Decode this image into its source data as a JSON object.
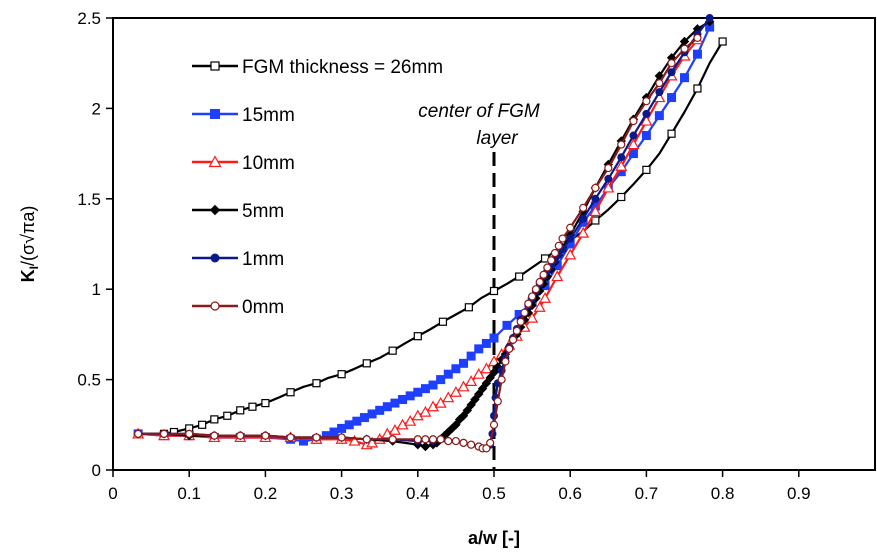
{
  "chart_data": {
    "type": "line",
    "xlabel": "a/w [-]",
    "ylabel_main": "K",
    "ylabel_sub": "I",
    "ylabel_rest": "/(σ√πa)",
    "xlim": [
      0,
      1
    ],
    "ylim": [
      0,
      2.5
    ],
    "x_ticks": [
      0,
      0.1,
      0.2,
      0.3,
      0.4,
      0.5,
      0.6,
      0.7,
      0.8,
      0.9
    ],
    "x_tick_labels": [
      "0",
      "0.1",
      "0.2",
      "0.3",
      "0.4",
      "0.5",
      "0.6",
      "0.7",
      "0.8",
      "0.9"
    ],
    "y_ticks": [
      0,
      0.5,
      1,
      1.5,
      2,
      2.5
    ],
    "y_tick_labels": [
      "0",
      "0.5",
      "1",
      "1.5",
      "2",
      "2.5"
    ],
    "grid": false,
    "legend_position": "top-left",
    "annotation": {
      "line1": "center of FGM",
      "line2": "layer",
      "x": 0.5
    },
    "series": [
      {
        "name": "FGM thickness = 26mm",
        "color": "#000000",
        "marker": "square-open",
        "x": [
          0.033,
          0.067,
          0.08,
          0.1,
          0.117,
          0.133,
          0.15,
          0.167,
          0.183,
          0.2,
          0.217,
          0.233,
          0.25,
          0.267,
          0.283,
          0.3,
          0.317,
          0.333,
          0.35,
          0.367,
          0.383,
          0.4,
          0.417,
          0.433,
          0.45,
          0.467,
          0.483,
          0.5,
          0.517,
          0.533,
          0.55,
          0.567,
          0.583,
          0.6,
          0.617,
          0.633,
          0.65,
          0.667,
          0.683,
          0.7,
          0.717,
          0.733,
          0.75,
          0.767,
          0.783,
          0.8
        ],
        "y": [
          0.2,
          0.2,
          0.21,
          0.23,
          0.25,
          0.28,
          0.3,
          0.33,
          0.35,
          0.37,
          0.4,
          0.43,
          0.46,
          0.48,
          0.51,
          0.53,
          0.56,
          0.59,
          0.62,
          0.66,
          0.7,
          0.74,
          0.78,
          0.82,
          0.86,
          0.9,
          0.95,
          0.99,
          1.03,
          1.07,
          1.12,
          1.17,
          1.22,
          1.27,
          1.32,
          1.38,
          1.44,
          1.51,
          1.58,
          1.66,
          1.75,
          1.86,
          1.98,
          2.11,
          2.25,
          2.37
        ],
        "marked_x": [
          0.033,
          0.067,
          0.08,
          0.1,
          0.117,
          0.133,
          0.15,
          0.167,
          0.183,
          0.2,
          0.233,
          0.267,
          0.3,
          0.333,
          0.367,
          0.4,
          0.433,
          0.467,
          0.5,
          0.533,
          0.567,
          0.6,
          0.633,
          0.667,
          0.7,
          0.733,
          0.767,
          0.8
        ]
      },
      {
        "name": "15mm",
        "color": "#1f3fff",
        "marker": "square-filled",
        "x": [
          0.033,
          0.067,
          0.1,
          0.133,
          0.167,
          0.2,
          0.233,
          0.25,
          0.267,
          0.28,
          0.29,
          0.3,
          0.31,
          0.32,
          0.33,
          0.34,
          0.35,
          0.36,
          0.37,
          0.38,
          0.39,
          0.4,
          0.41,
          0.42,
          0.43,
          0.44,
          0.45,
          0.46,
          0.47,
          0.48,
          0.49,
          0.5,
          0.517,
          0.533,
          0.55,
          0.567,
          0.583,
          0.6,
          0.617,
          0.633,
          0.65,
          0.667,
          0.683,
          0.7,
          0.717,
          0.733,
          0.75,
          0.767,
          0.783
        ],
        "y": [
          0.2,
          0.19,
          0.19,
          0.18,
          0.18,
          0.18,
          0.17,
          0.16,
          0.17,
          0.19,
          0.21,
          0.23,
          0.25,
          0.27,
          0.29,
          0.31,
          0.33,
          0.35,
          0.37,
          0.39,
          0.41,
          0.43,
          0.45,
          0.47,
          0.5,
          0.53,
          0.56,
          0.59,
          0.63,
          0.67,
          0.7,
          0.73,
          0.8,
          0.86,
          0.93,
          1.02,
          1.13,
          1.25,
          1.37,
          1.46,
          1.56,
          1.65,
          1.75,
          1.85,
          1.96,
          2.06,
          2.17,
          2.3,
          2.45
        ]
      },
      {
        "name": "10mm",
        "color": "#ff1a1a",
        "marker": "triangle-open",
        "x": [
          0.033,
          0.067,
          0.1,
          0.133,
          0.167,
          0.2,
          0.233,
          0.267,
          0.3,
          0.317,
          0.333,
          0.34,
          0.35,
          0.36,
          0.37,
          0.38,
          0.39,
          0.4,
          0.41,
          0.42,
          0.43,
          0.44,
          0.45,
          0.46,
          0.47,
          0.48,
          0.49,
          0.5,
          0.51,
          0.52,
          0.53,
          0.54,
          0.55,
          0.56,
          0.567,
          0.583,
          0.6,
          0.617,
          0.633,
          0.65,
          0.667,
          0.683,
          0.7,
          0.717,
          0.733,
          0.75,
          0.767
        ],
        "y": [
          0.2,
          0.19,
          0.19,
          0.18,
          0.18,
          0.18,
          0.18,
          0.17,
          0.17,
          0.16,
          0.14,
          0.15,
          0.17,
          0.2,
          0.22,
          0.25,
          0.27,
          0.3,
          0.32,
          0.35,
          0.37,
          0.4,
          0.43,
          0.46,
          0.49,
          0.53,
          0.56,
          0.6,
          0.64,
          0.69,
          0.74,
          0.79,
          0.84,
          0.9,
          0.95,
          1.07,
          1.19,
          1.31,
          1.43,
          1.56,
          1.68,
          1.8,
          1.93,
          2.06,
          2.18,
          2.29,
          2.38
        ]
      },
      {
        "name": "5mm",
        "color": "#000000",
        "marker": "diamond-filled",
        "x": [
          0.033,
          0.067,
          0.1,
          0.133,
          0.167,
          0.2,
          0.233,
          0.267,
          0.3,
          0.333,
          0.367,
          0.4,
          0.41,
          0.42,
          0.425,
          0.43,
          0.435,
          0.44,
          0.445,
          0.45,
          0.455,
          0.46,
          0.465,
          0.47,
          0.475,
          0.48,
          0.485,
          0.49,
          0.495,
          0.5,
          0.505,
          0.51,
          0.515,
          0.52,
          0.525,
          0.53,
          0.535,
          0.54,
          0.545,
          0.55,
          0.555,
          0.56,
          0.565,
          0.57,
          0.575,
          0.58,
          0.585,
          0.59,
          0.6,
          0.617,
          0.633,
          0.65,
          0.667,
          0.683,
          0.7,
          0.717,
          0.733,
          0.75,
          0.767,
          0.783
        ],
        "y": [
          0.2,
          0.2,
          0.19,
          0.19,
          0.19,
          0.19,
          0.18,
          0.18,
          0.18,
          0.17,
          0.16,
          0.14,
          0.13,
          0.14,
          0.15,
          0.17,
          0.19,
          0.21,
          0.23,
          0.25,
          0.28,
          0.3,
          0.33,
          0.36,
          0.39,
          0.42,
          0.45,
          0.48,
          0.51,
          0.54,
          0.57,
          0.61,
          0.64,
          0.68,
          0.72,
          0.75,
          0.79,
          0.83,
          0.87,
          0.91,
          0.95,
          0.99,
          1.03,
          1.07,
          1.11,
          1.15,
          1.19,
          1.23,
          1.3,
          1.43,
          1.56,
          1.69,
          1.82,
          1.94,
          2.06,
          2.18,
          2.28,
          2.37,
          2.44,
          2.48
        ]
      },
      {
        "name": "1mm",
        "color": "#0a1a8a",
        "marker": "circle-filled",
        "x": [
          0.033,
          0.067,
          0.1,
          0.133,
          0.167,
          0.2,
          0.233,
          0.267,
          0.3,
          0.333,
          0.367,
          0.4,
          0.42,
          0.44,
          0.46,
          0.47,
          0.48,
          0.485,
          0.49,
          0.495,
          0.498,
          0.5,
          0.502,
          0.505,
          0.51,
          0.515,
          0.52,
          0.525,
          0.53,
          0.535,
          0.54,
          0.545,
          0.55,
          0.555,
          0.56,
          0.565,
          0.57,
          0.575,
          0.58,
          0.585,
          0.59,
          0.6,
          0.617,
          0.633,
          0.65,
          0.667,
          0.683,
          0.7,
          0.717,
          0.733,
          0.75,
          0.767,
          0.783
        ],
        "y": [
          0.2,
          0.2,
          0.2,
          0.19,
          0.19,
          0.19,
          0.18,
          0.18,
          0.18,
          0.17,
          0.17,
          0.16,
          0.16,
          0.16,
          0.15,
          0.14,
          0.13,
          0.12,
          0.12,
          0.14,
          0.2,
          0.3,
          0.4,
          0.48,
          0.55,
          0.62,
          0.68,
          0.73,
          0.78,
          0.83,
          0.87,
          0.91,
          0.95,
          0.99,
          1.03,
          1.07,
          1.1,
          1.13,
          1.16,
          1.19,
          1.22,
          1.28,
          1.39,
          1.5,
          1.61,
          1.73,
          1.85,
          1.97,
          2.09,
          2.2,
          2.31,
          2.41,
          2.5
        ]
      },
      {
        "name": "0mm",
        "color": "#8b1a1a",
        "marker": "circle-open",
        "x": [
          0.033,
          0.067,
          0.1,
          0.133,
          0.167,
          0.2,
          0.233,
          0.267,
          0.3,
          0.333,
          0.367,
          0.4,
          0.41,
          0.42,
          0.43,
          0.44,
          0.45,
          0.46,
          0.47,
          0.48,
          0.485,
          0.49,
          0.495,
          0.5,
          0.505,
          0.51,
          0.515,
          0.52,
          0.525,
          0.53,
          0.535,
          0.54,
          0.545,
          0.55,
          0.555,
          0.56,
          0.565,
          0.57,
          0.575,
          0.58,
          0.585,
          0.59,
          0.6,
          0.617,
          0.633,
          0.65,
          0.667,
          0.683,
          0.7,
          0.717,
          0.733,
          0.75,
          0.767
        ],
        "y": [
          0.2,
          0.2,
          0.2,
          0.19,
          0.19,
          0.19,
          0.18,
          0.18,
          0.18,
          0.17,
          0.17,
          0.17,
          0.17,
          0.17,
          0.17,
          0.16,
          0.16,
          0.15,
          0.14,
          0.13,
          0.12,
          0.12,
          0.15,
          0.25,
          0.38,
          0.5,
          0.6,
          0.67,
          0.72,
          0.77,
          0.82,
          0.87,
          0.92,
          0.96,
          1.0,
          1.04,
          1.08,
          1.12,
          1.16,
          1.2,
          1.24,
          1.28,
          1.34,
          1.45,
          1.56,
          1.67,
          1.8,
          1.93,
          2.04,
          2.14,
          2.25,
          2.33,
          2.39
        ]
      }
    ]
  }
}
